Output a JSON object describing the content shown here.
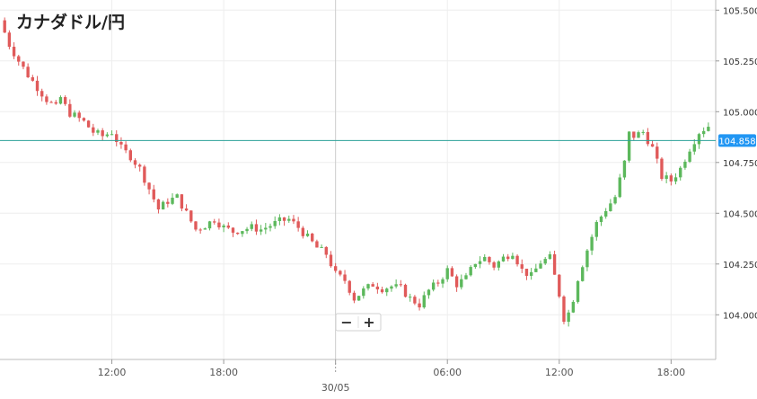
{
  "chart_data": {
    "type": "candlestick",
    "title": "カナダドル/円",
    "xlabel": "",
    "ylabel": "",
    "ylim": [
      103.78,
      105.55
    ],
    "y_ticks": [
      "105.500",
      "105.250",
      "105.000",
      "104.750",
      "104.500",
      "104.250",
      "104.000"
    ],
    "y_tick_values": [
      105.5,
      105.25,
      105.0,
      104.75,
      104.5,
      104.25,
      104.0
    ],
    "x_ticks": [
      {
        "label": "12:00",
        "hours": 12
      },
      {
        "label": "18:00",
        "hours": 18
      },
      {
        "label": "",
        "hours": 24,
        "date": "30/05"
      },
      {
        "label": "06:00",
        "hours": 30
      },
      {
        "label": "12:00",
        "hours": 36
      },
      {
        "label": "18:00",
        "hours": 42
      }
    ],
    "date_label": "30/05",
    "x_range_hours": [
      6.0,
      44.2
    ],
    "candle_interval_hours": 0.25,
    "current_price": "104.858",
    "current_price_value": 104.858,
    "colors": {
      "up": "#5cb85c",
      "down": "#e05a5a",
      "price_line": "#2aa198",
      "price_badge": "#2196f3",
      "grid": "#eeeeee"
    },
    "grid": true,
    "close_path": [
      [
        6.0,
        105.45
      ],
      [
        6.5,
        105.33
      ],
      [
        7.0,
        105.25
      ],
      [
        7.5,
        105.18
      ],
      [
        8.0,
        105.12
      ],
      [
        8.5,
        105.06
      ],
      [
        9.0,
        105.02
      ],
      [
        9.3,
        105.08
      ],
      [
        9.6,
        105.0
      ],
      [
        10.0,
        104.98
      ],
      [
        10.5,
        104.95
      ],
      [
        11.0,
        104.9
      ],
      [
        11.5,
        104.88
      ],
      [
        12.0,
        104.9
      ],
      [
        12.5,
        104.82
      ],
      [
        13.0,
        104.78
      ],
      [
        13.5,
        104.72
      ],
      [
        14.0,
        104.62
      ],
      [
        14.5,
        104.52
      ],
      [
        15.0,
        104.56
      ],
      [
        15.5,
        104.58
      ],
      [
        16.0,
        104.5
      ],
      [
        16.5,
        104.42
      ],
      [
        17.0,
        104.44
      ],
      [
        17.5,
        104.47
      ],
      [
        18.0,
        104.43
      ],
      [
        18.5,
        104.41
      ],
      [
        19.0,
        104.42
      ],
      [
        19.5,
        104.43
      ],
      [
        20.0,
        104.42
      ],
      [
        20.5,
        104.44
      ],
      [
        21.0,
        104.46
      ],
      [
        21.5,
        104.47
      ],
      [
        22.0,
        104.43
      ],
      [
        22.5,
        104.38
      ],
      [
        23.0,
        104.33
      ],
      [
        23.5,
        104.3
      ],
      [
        24.0,
        104.2
      ],
      [
        24.5,
        104.17
      ],
      [
        25.0,
        104.08
      ],
      [
        25.5,
        104.12
      ],
      [
        26.0,
        104.15
      ],
      [
        26.5,
        104.13
      ],
      [
        27.0,
        104.14
      ],
      [
        27.5,
        104.13
      ],
      [
        28.0,
        104.08
      ],
      [
        28.5,
        104.05
      ],
      [
        29.0,
        104.12
      ],
      [
        29.5,
        104.16
      ],
      [
        30.0,
        104.22
      ],
      [
        30.5,
        104.15
      ],
      [
        31.0,
        104.18
      ],
      [
        31.5,
        104.26
      ],
      [
        32.0,
        104.28
      ],
      [
        32.5,
        104.24
      ],
      [
        33.0,
        104.28
      ],
      [
        33.5,
        104.31
      ],
      [
        34.0,
        104.22
      ],
      [
        34.5,
        104.19
      ],
      [
        35.0,
        104.26
      ],
      [
        35.5,
        104.28
      ],
      [
        36.0,
        104.1
      ],
      [
        36.3,
        103.96
      ],
      [
        36.7,
        104.06
      ],
      [
        37.0,
        104.18
      ],
      [
        37.5,
        104.32
      ],
      [
        38.0,
        104.45
      ],
      [
        38.5,
        104.52
      ],
      [
        39.0,
        104.58
      ],
      [
        39.5,
        104.75
      ],
      [
        39.8,
        104.92
      ],
      [
        40.0,
        104.88
      ],
      [
        40.5,
        104.9
      ],
      [
        41.0,
        104.82
      ],
      [
        41.5,
        104.68
      ],
      [
        42.0,
        104.66
      ],
      [
        42.5,
        104.72
      ],
      [
        43.0,
        104.82
      ],
      [
        43.5,
        104.9
      ],
      [
        44.0,
        104.93
      ],
      [
        44.2,
        104.86
      ]
    ]
  },
  "zoom_controls": {
    "minus": "−",
    "plus": "+"
  }
}
